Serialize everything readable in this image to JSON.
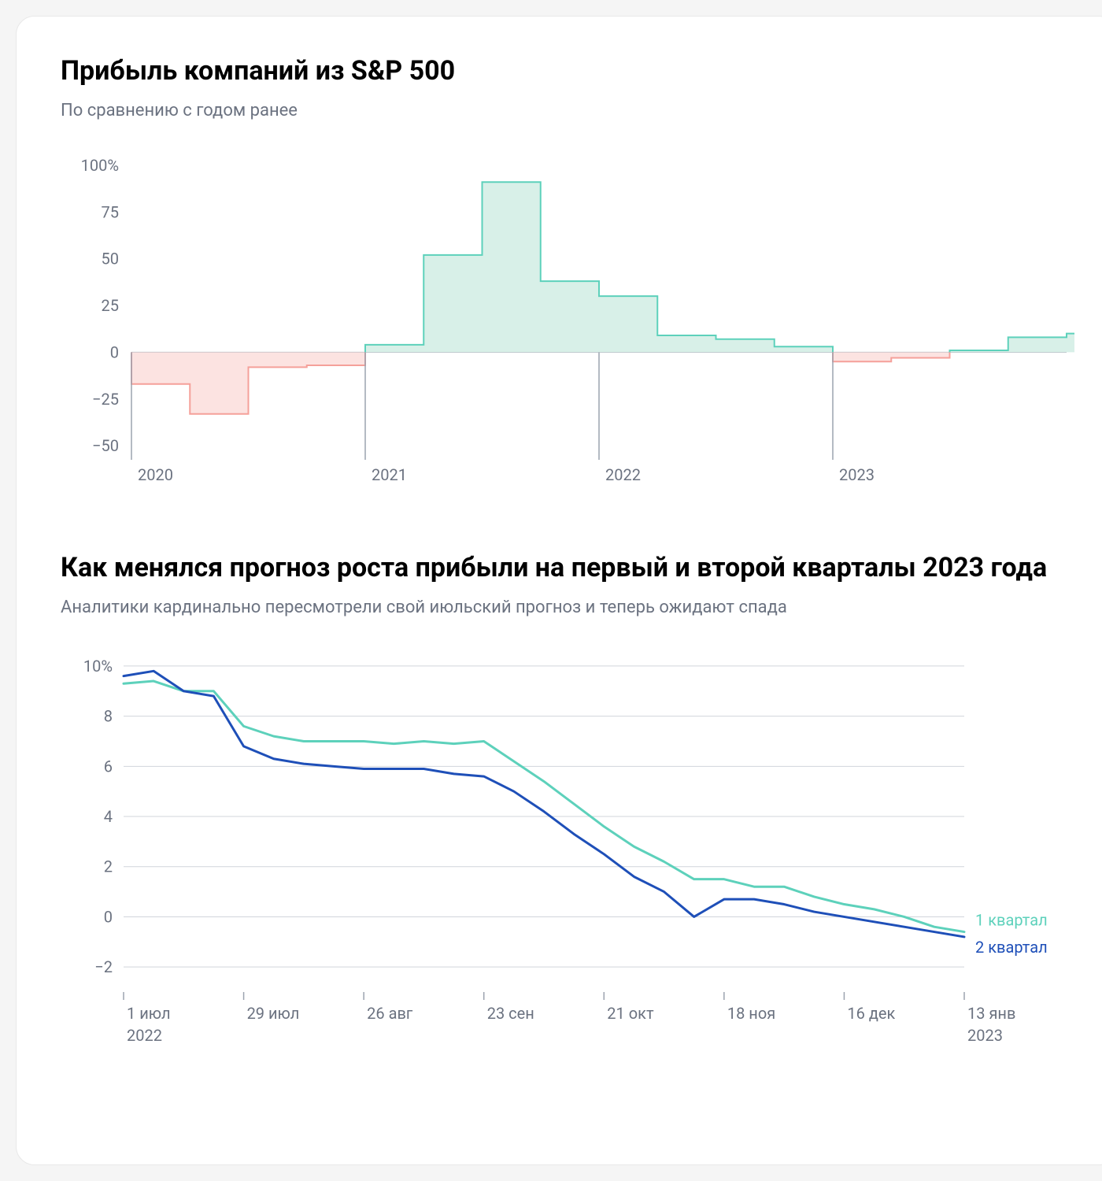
{
  "chart1": {
    "type": "step-area",
    "title": "Прибыль компаний из S&P 500",
    "subtitle": "По сравнению с годом ранее",
    "y_axis": {
      "ticks": [
        -50,
        -25,
        0,
        25,
        50,
        75,
        100
      ],
      "tick_labels": [
        "−50",
        "−25",
        "0",
        "25",
        "50",
        "75",
        "100%"
      ],
      "min": -55,
      "max": 105,
      "label_fontsize": 20,
      "label_color": "#6b7280"
    },
    "x_axis": {
      "ticks": [
        0,
        4,
        8,
        12
      ],
      "tick_labels": [
        "2020",
        "2021",
        "2022",
        "2023"
      ],
      "label_fontsize": 20,
      "label_color": "#6b7280",
      "min": 0,
      "max": 16
    },
    "data": [
      -17,
      -33,
      -8,
      -7,
      4,
      52,
      91,
      38,
      30,
      9,
      7,
      3,
      -5,
      -3,
      1,
      8,
      10,
      10
    ],
    "positive_fill": "#d8f0e8",
    "positive_stroke": "#5dd1bb",
    "negative_fill": "#fce3e1",
    "negative_stroke": "#f5a09a",
    "zero_line_color": "#9ca3af",
    "stroke_width": 2
  },
  "chart2": {
    "type": "line",
    "title": "Как менялся прогноз роста прибыли на первый и второй кварталы 2023 года",
    "subtitle": "Аналитики кардинально пересмотрели свой июльский прогноз и теперь ожидают спада",
    "y_axis": {
      "ticks": [
        -2,
        0,
        2,
        4,
        6,
        8,
        10
      ],
      "tick_labels": [
        "−2",
        "0",
        "2",
        "4",
        "6",
        "8",
        "10%"
      ],
      "min": -3,
      "max": 10.5,
      "label_fontsize": 20,
      "label_color": "#6b7280"
    },
    "x_axis": {
      "ticks": [
        0,
        4,
        8,
        12,
        16,
        20,
        24,
        28
      ],
      "tick_labels": [
        "1 июл",
        "29 июл",
        "26 авг",
        "23 сен",
        "21 окт",
        "18 ноя",
        "16 дек",
        "13 янв"
      ],
      "tick_sublabels": [
        "2022",
        "",
        "",
        "",
        "",
        "",
        "",
        "2023"
      ],
      "label_fontsize": 20,
      "label_color": "#6b7280",
      "min": 0,
      "max": 28
    },
    "series": [
      {
        "name": "1 квартал",
        "color": "#5dd1bb",
        "stroke_width": 3,
        "data": [
          9.3,
          9.4,
          9.0,
          9.0,
          7.6,
          7.2,
          7.0,
          7.0,
          7.0,
          6.9,
          7.0,
          6.9,
          7.0,
          6.2,
          5.4,
          4.5,
          3.6,
          2.8,
          2.2,
          1.5,
          1.5,
          1.2,
          1.2,
          0.8,
          0.5,
          0.3,
          0.0,
          -0.4,
          -0.6
        ]
      },
      {
        "name": "2 квартал",
        "color": "#1e4fb8",
        "stroke_width": 3,
        "data": [
          9.6,
          9.8,
          9.0,
          8.8,
          6.8,
          6.3,
          6.1,
          6.0,
          5.9,
          5.9,
          5.9,
          5.7,
          5.6,
          5.0,
          4.2,
          3.3,
          2.5,
          1.6,
          1.0,
          0.0,
          0.7,
          0.7,
          0.5,
          0.2,
          0.0,
          -0.2,
          -0.4,
          -0.6,
          -0.8
        ]
      }
    ],
    "grid_color": "#d1d5db",
    "background": "#ffffff"
  },
  "layout": {
    "card_bg": "#ffffff",
    "card_radius": 24,
    "title_color": "#000000",
    "subtitle_color": "#6b7280"
  }
}
